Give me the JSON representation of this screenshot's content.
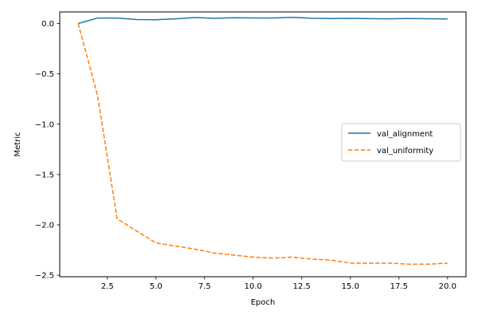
{
  "chart_data": {
    "type": "line",
    "title": "",
    "xlabel": "Epoch",
    "ylabel": "Metric",
    "xlim": [
      0.05,
      20.95
    ],
    "ylim": [
      -2.515,
      0.115
    ],
    "xticks": [
      2.5,
      5.0,
      7.5,
      10.0,
      12.5,
      15.0,
      17.5,
      20.0
    ],
    "xtick_labels": [
      "2.5",
      "5.0",
      "7.5",
      "10.0",
      "12.5",
      "15.0",
      "17.5",
      "20.0"
    ],
    "yticks": [
      0.0,
      -0.5,
      -1.0,
      -1.5,
      -2.0,
      -2.5
    ],
    "ytick_labels": [
      "0.0",
      "−0.5",
      "−1.0",
      "−1.5",
      "−2.0",
      "−2.5"
    ],
    "grid": false,
    "legend_position": "center-right",
    "x": [
      1,
      2,
      3,
      4,
      5,
      6,
      7,
      8,
      9,
      10,
      11,
      12,
      13,
      14,
      15,
      16,
      17,
      18,
      19,
      20
    ],
    "series": [
      {
        "name": "val_alignment",
        "color": "#1f77b4",
        "style": "solid",
        "values": [
          0.0,
          0.055,
          0.055,
          0.04,
          0.038,
          0.047,
          0.06,
          0.052,
          0.058,
          0.056,
          0.055,
          0.062,
          0.053,
          0.05,
          0.052,
          0.049,
          0.047,
          0.05,
          0.048,
          0.046
        ]
      },
      {
        "name": "val_uniformity",
        "color": "#ff7f0e",
        "style": "dashed",
        "values": [
          0.0,
          -0.72,
          -1.94,
          -2.06,
          -2.18,
          -2.21,
          -2.24,
          -2.28,
          -2.3,
          -2.32,
          -2.33,
          -2.32,
          -2.34,
          -2.35,
          -2.38,
          -2.38,
          -2.38,
          -2.39,
          -2.39,
          -2.38
        ]
      }
    ]
  }
}
